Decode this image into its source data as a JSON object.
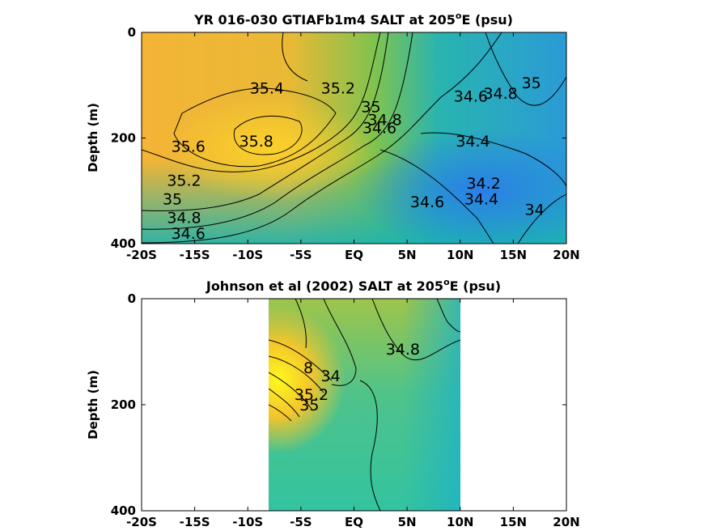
{
  "chart_data": [
    {
      "type": "heatmap",
      "subtype": "filled-contour",
      "title_main": "YR 016-030 GTIAFb1m4 SALT at 205",
      "title_sup": "o",
      "title_tail": "E (psu)",
      "xlabel": "",
      "ylabel": "Depth (m)",
      "x_ticks": [
        "-20S",
        "-15S",
        "-10S",
        "-5S",
        "EQ",
        "5N",
        "10N",
        "15N",
        "20N"
      ],
      "x_tick_values": [
        -20,
        -15,
        -10,
        -5,
        0,
        5,
        10,
        15,
        20
      ],
      "y_ticks": [
        "0",
        "200",
        "400"
      ],
      "y_tick_values": [
        0,
        200,
        400
      ],
      "xlim": [
        -20,
        20
      ],
      "ylim": [
        400,
        0
      ],
      "y_reversed": true,
      "grid": false,
      "colormap": "parula",
      "color_range": [
        34.0,
        36.0
      ],
      "data_extent_x": [
        -20,
        20
      ],
      "contour_labels": [
        {
          "text": "35.4",
          "x": -8.2,
          "y": 105
        },
        {
          "text": "35.2",
          "x": -1.5,
          "y": 105
        },
        {
          "text": "35",
          "x": 1.6,
          "y": 140
        },
        {
          "text": "34.8",
          "x": 2.9,
          "y": 165
        },
        {
          "text": "34.6",
          "x": 2.4,
          "y": 180
        },
        {
          "text": "34.6",
          "x": 11.0,
          "y": 120
        },
        {
          "text": "34.8",
          "x": 13.8,
          "y": 115
        },
        {
          "text": "35",
          "x": 16.7,
          "y": 95
        },
        {
          "text": "35.6",
          "x": -15.6,
          "y": 215
        },
        {
          "text": "35.8",
          "x": -9.2,
          "y": 205
        },
        {
          "text": "34.4",
          "x": 11.2,
          "y": 205
        },
        {
          "text": "35.2",
          "x": -16.0,
          "y": 280
        },
        {
          "text": "35",
          "x": -17.1,
          "y": 315
        },
        {
          "text": "34.2",
          "x": 12.2,
          "y": 285
        },
        {
          "text": "34.4",
          "x": 12.0,
          "y": 315
        },
        {
          "text": "34.6",
          "x": 6.9,
          "y": 320
        },
        {
          "text": "34",
          "x": 17.0,
          "y": 335
        },
        {
          "text": "34.8",
          "x": -16.0,
          "y": 350
        },
        {
          "text": "34.6",
          "x": -15.6,
          "y": 380
        }
      ]
    },
    {
      "type": "heatmap",
      "subtype": "filled-contour",
      "title_main": "Johnson et al (2002) SALT at 205",
      "title_sup": "o",
      "title_tail": "E (psu)",
      "xlabel": "",
      "ylabel": "Depth (m)",
      "x_ticks": [
        "-20S",
        "-15S",
        "-10S",
        "-5S",
        "EQ",
        "5N",
        "10N",
        "15N",
        "20N"
      ],
      "x_tick_values": [
        -20,
        -15,
        -10,
        -5,
        0,
        5,
        10,
        15,
        20
      ],
      "y_ticks": [
        "0",
        "200",
        "400"
      ],
      "y_tick_values": [
        0,
        200,
        400
      ],
      "xlim": [
        -20,
        20
      ],
      "ylim": [
        400,
        0
      ],
      "y_reversed": true,
      "grid": false,
      "colormap": "parula",
      "color_range": [
        34.0,
        36.0
      ],
      "data_extent_x": [
        -8,
        10
      ],
      "contour_labels": [
        {
          "text": "34.8",
          "x": 4.6,
          "y": 95
        },
        {
          "text": "34",
          "x": -2.2,
          "y": 145
        },
        {
          "text": "35",
          "x": -4.2,
          "y": 200
        },
        {
          "text": "35.2",
          "x": -4.0,
          "y": 180
        },
        {
          "text": "8",
          "x": -4.3,
          "y": 130
        }
      ]
    }
  ]
}
